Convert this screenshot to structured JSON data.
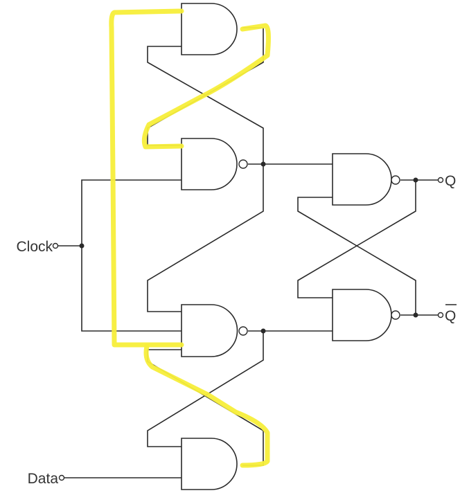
{
  "diagram": {
    "inputs": {
      "clock": "Clock",
      "data": "Data"
    },
    "outputs": {
      "q": "Q",
      "q_bar": "Q"
    },
    "colors": {
      "wire": "#2a2a2a",
      "highlight": "#f7ee3a"
    }
  }
}
